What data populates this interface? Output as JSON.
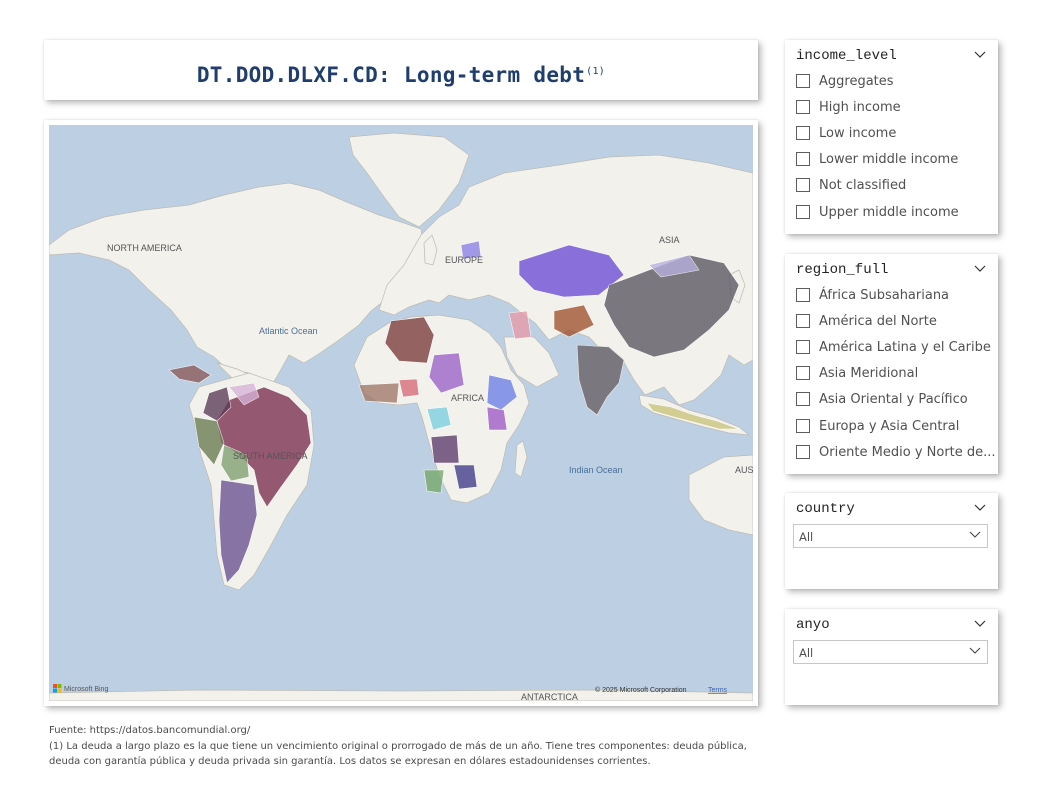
{
  "title": {
    "main": "DT.DOD.DLXF.CD: Long-term debt",
    "note_ref": "(1)"
  },
  "map": {
    "labels": {
      "north_america": "NORTH AMERICA",
      "south_america": "SOUTH AMERICA",
      "europe": "EUROPE",
      "asia": "ASIA",
      "africa": "AFRICA",
      "australia": "AUS",
      "antarctica": "ANTARCTICA",
      "atlantic": "Atlantic Ocean",
      "indian": "Indian Ocean"
    },
    "attribution": {
      "bing": "Microsoft Bing",
      "copyright": "© 2025 Microsoft Corporation",
      "terms": "Terms"
    },
    "colors": {
      "ocean": "#bdd0e3",
      "land": "#f3f1ec",
      "border": "#bdbab3"
    }
  },
  "slicers": {
    "income_level": {
      "title": "income_level",
      "options": [
        "Aggregates",
        "High income",
        "Low income",
        "Lower middle income",
        "Not classified",
        "Upper middle income"
      ]
    },
    "region_full": {
      "title": "region_full",
      "options": [
        "África Subsahariana",
        "América del Norte",
        "América Latina y el Caribe",
        "Asia Meridional",
        "Asia Oriental y Pacífico",
        "Europa y Asia Central",
        "Oriente Medio y Norte de..."
      ]
    },
    "country": {
      "title": "country",
      "selected": "All"
    },
    "anyo": {
      "title": "anyo",
      "selected": "All"
    }
  },
  "footer": {
    "source": "Fuente: https://datos.bancomundial.org/",
    "note": "(1) La deuda a largo plazo es la que tiene un vencimiento original o prorrogado de más de un año. Tiene tres componentes: deuda pública, deuda con garantía pública y deuda privada sin garantía. Los datos se expresan en dólares estadounidenses corrientes."
  },
  "accent_color": "#1f3e6e"
}
